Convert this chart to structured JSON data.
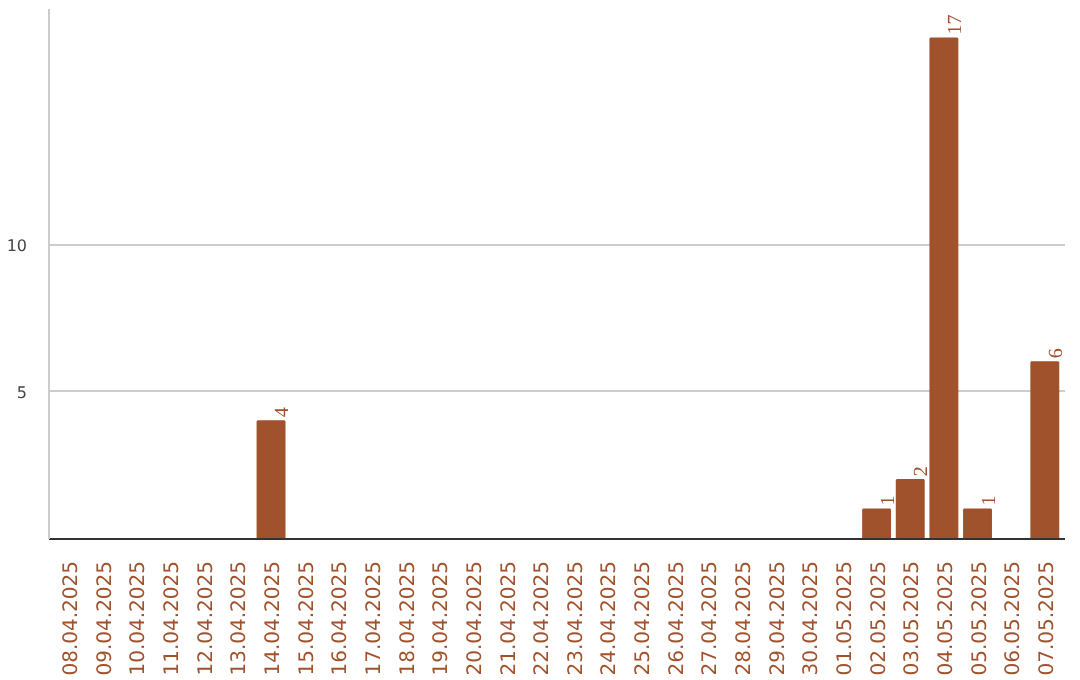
{
  "chart_data": {
    "type": "bar",
    "categories": [
      "08.04.2025",
      "09.04.2025",
      "10.04.2025",
      "11.04.2025",
      "12.04.2025",
      "13.04.2025",
      "14.04.2025",
      "15.04.2025",
      "16.04.2025",
      "17.04.2025",
      "18.04.2025",
      "19.04.2025",
      "20.04.2025",
      "21.04.2025",
      "22.04.2025",
      "23.04.2025",
      "24.04.2025",
      "25.04.2025",
      "26.04.2025",
      "27.04.2025",
      "28.04.2025",
      "29.04.2025",
      "30.04.2025",
      "01.05.2025",
      "02.05.2025",
      "03.05.2025",
      "04.05.2025",
      "05.05.2025",
      "06.05.2025",
      "07.05.2025"
    ],
    "values": [
      0,
      0,
      0,
      0,
      0,
      0,
      4,
      0,
      0,
      0,
      0,
      0,
      0,
      0,
      0,
      0,
      0,
      0,
      0,
      0,
      0,
      0,
      0,
      0,
      1,
      2,
      17,
      1,
      0,
      6
    ],
    "value_labels": [
      null,
      null,
      null,
      null,
      null,
      null,
      "4",
      null,
      null,
      null,
      null,
      null,
      null,
      null,
      null,
      null,
      null,
      null,
      null,
      null,
      null,
      null,
      null,
      null,
      "1",
      "2",
      "17",
      "1",
      null,
      "6"
    ],
    "color": "#a0522d",
    "ylim": [
      0,
      18
    ],
    "yticks": [
      5,
      10
    ],
    "grid": "y"
  }
}
